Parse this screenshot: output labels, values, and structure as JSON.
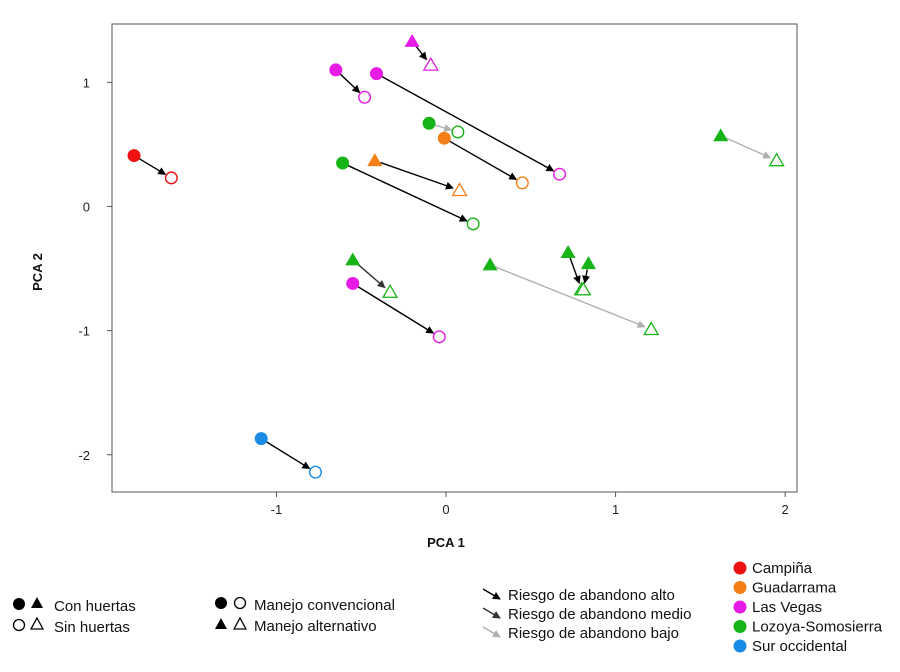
{
  "chart_data": {
    "type": "scatter",
    "xlabel": "PCA 1",
    "ylabel": "PCA 2",
    "xlim": [
      -1.97,
      2.07
    ],
    "ylim": [
      -2.3,
      1.47
    ],
    "xticks": [
      -1,
      0,
      1,
      2
    ],
    "xtick_labels": [
      "-1",
      "0",
      "1",
      "2"
    ],
    "yticks": [
      1,
      0,
      -1,
      -2
    ],
    "ytick_labels": [
      "1",
      "0",
      "-1",
      "-2"
    ],
    "colors": {
      "Campiña": "#ee1111",
      "Guadarrama": "#f47f16",
      "Las Vegas": "#e61be6",
      "Lozoya-Somosierra": "#16b416",
      "Sur occidental": "#1a8ce6"
    },
    "risk_colors": {
      "alto": "#000000",
      "medio": "#333333",
      "bajo": "#b0b0b0"
    },
    "pairs": [
      {
        "region": "Campiña",
        "marker": "circle",
        "risk": "alto",
        "from": [
          -1.84,
          0.41
        ],
        "to": [
          -1.62,
          0.23
        ]
      },
      {
        "region": "Las Vegas",
        "marker": "triangle",
        "risk": "alto",
        "from": [
          -0.2,
          1.33
        ],
        "to": [
          -0.09,
          1.14
        ]
      },
      {
        "region": "Las Vegas",
        "marker": "circle",
        "risk": "alto",
        "from": [
          -0.65,
          1.1
        ],
        "to": [
          -0.48,
          0.88
        ]
      },
      {
        "region": "Las Vegas",
        "marker": "circle",
        "risk": "alto",
        "from": [
          -0.41,
          1.07
        ],
        "to": [
          0.67,
          0.26
        ]
      },
      {
        "region": "Lozoya-Somosierra",
        "marker": "circle",
        "risk": "bajo",
        "from": [
          -0.1,
          0.67
        ],
        "to": [
          0.07,
          0.6
        ]
      },
      {
        "region": "Guadarrama",
        "marker": "circle",
        "risk": "alto",
        "from": [
          -0.01,
          0.55
        ],
        "to": [
          0.45,
          0.19
        ]
      },
      {
        "region": "Guadarrama",
        "marker": "triangle",
        "risk": "alto",
        "from": [
          -0.42,
          0.37
        ],
        "to": [
          0.08,
          0.13
        ]
      },
      {
        "region": "Lozoya-Somosierra",
        "marker": "circle",
        "risk": "alto",
        "from": [
          -0.61,
          0.35
        ],
        "to": [
          0.16,
          -0.14
        ]
      },
      {
        "region": "Lozoya-Somosierra",
        "marker": "triangle",
        "risk": "bajo",
        "from": [
          1.62,
          0.57
        ],
        "to": [
          1.95,
          0.37
        ]
      },
      {
        "region": "Lozoya-Somosierra",
        "marker": "triangle",
        "risk": "medio",
        "from": [
          -0.55,
          -0.43
        ],
        "to": [
          -0.33,
          -0.69
        ]
      },
      {
        "region": "Las Vegas",
        "marker": "circle",
        "risk": "alto",
        "from": [
          -0.55,
          -0.62
        ],
        "to": [
          -0.04,
          -1.05
        ]
      },
      {
        "region": "Lozoya-Somosierra",
        "marker": "triangle",
        "risk": "bajo",
        "from": [
          0.26,
          -0.47
        ],
        "to": [
          1.21,
          -0.99
        ]
      },
      {
        "region": "Lozoya-Somosierra",
        "marker": "triangle",
        "risk": "alto",
        "from": [
          0.72,
          -0.37
        ],
        "to": [
          0.8,
          -0.67
        ]
      },
      {
        "region": "Lozoya-Somosierra",
        "marker": "triangle",
        "risk": "alto",
        "from": [
          0.84,
          -0.46
        ],
        "to": [
          0.81,
          -0.67
        ]
      },
      {
        "region": "Sur occidental",
        "marker": "circle",
        "risk": "alto",
        "from": [
          -1.09,
          -1.87
        ],
        "to": [
          -0.77,
          -2.14
        ]
      }
    ],
    "legend": {
      "huertas": {
        "con": "Con huertas",
        "sin": "Sin huertas"
      },
      "manejo": {
        "convencional": "Manejo convencional",
        "alternativo": "Manejo alternativo"
      },
      "riesgo": {
        "alto": "Riesgo de abandono alto",
        "medio": "Riesgo de abandono medio",
        "bajo": "Riesgo de abandono bajo"
      },
      "regions": [
        "Campiña",
        "Guadarrama",
        "Las Vegas",
        "Lozoya-Somosierra",
        "Sur occidental"
      ]
    }
  }
}
